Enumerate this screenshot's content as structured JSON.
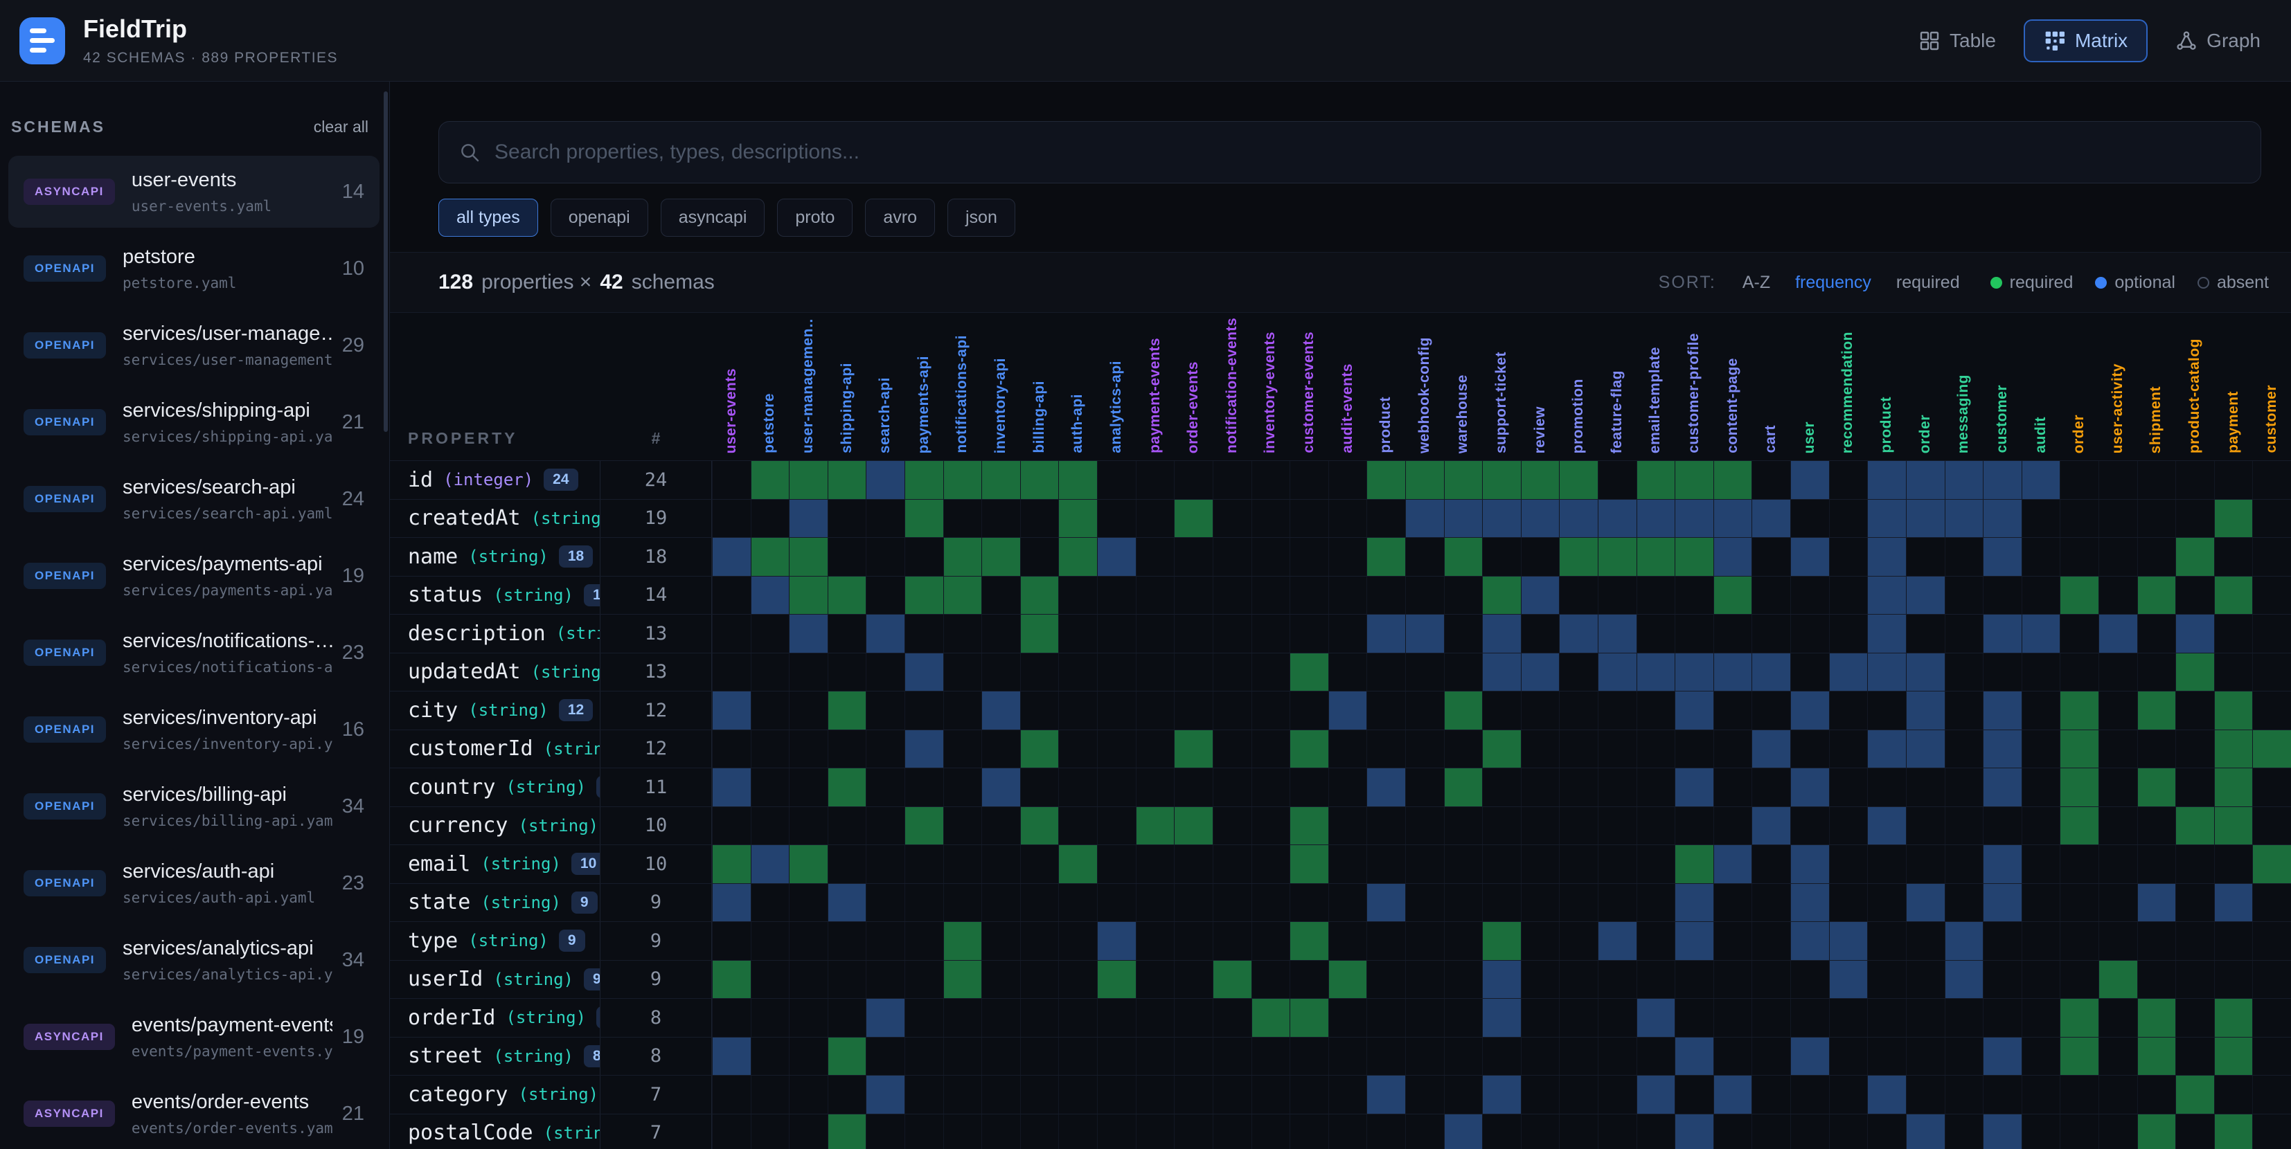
{
  "header": {
    "title": "FieldTrip",
    "subtitle": "42 SCHEMAS · 889 PROPERTIES",
    "views": [
      {
        "label": "Table",
        "icon": "table-grid-icon",
        "active": false
      },
      {
        "label": "Matrix",
        "icon": "matrix-grid-icon",
        "active": true
      },
      {
        "label": "Graph",
        "icon": "graph-nodes-icon",
        "active": false
      }
    ]
  },
  "sidebar": {
    "heading": "SCHEMAS",
    "clear_label": "clear all",
    "items": [
      {
        "badge": "ASYNCAPI",
        "name": "user-events",
        "file": "user-events.yaml",
        "count": 14,
        "selected": true
      },
      {
        "badge": "OPENAPI",
        "name": "petstore",
        "file": "petstore.yaml",
        "count": 10,
        "selected": false
      },
      {
        "badge": "OPENAPI",
        "name": "services/user-manage…",
        "file": "services/user-management…",
        "count": 29,
        "selected": false
      },
      {
        "badge": "OPENAPI",
        "name": "services/shipping-api",
        "file": "services/shipping-api.ya…",
        "count": 21,
        "selected": false
      },
      {
        "badge": "OPENAPI",
        "name": "services/search-api",
        "file": "services/search-api.yaml",
        "count": 24,
        "selected": false
      },
      {
        "badge": "OPENAPI",
        "name": "services/payments-api",
        "file": "services/payments-api.ya…",
        "count": 19,
        "selected": false
      },
      {
        "badge": "OPENAPI",
        "name": "services/notifications-…",
        "file": "services/notifications-a…",
        "count": 23,
        "selected": false
      },
      {
        "badge": "OPENAPI",
        "name": "services/inventory-api",
        "file": "services/inventory-api.y…",
        "count": 16,
        "selected": false
      },
      {
        "badge": "OPENAPI",
        "name": "services/billing-api",
        "file": "services/billing-api.yaml",
        "count": 34,
        "selected": false
      },
      {
        "badge": "OPENAPI",
        "name": "services/auth-api",
        "file": "services/auth-api.yaml",
        "count": 23,
        "selected": false
      },
      {
        "badge": "OPENAPI",
        "name": "services/analytics-api",
        "file": "services/analytics-api.y…",
        "count": 34,
        "selected": false
      },
      {
        "badge": "ASYNCAPI",
        "name": "events/payment-events",
        "file": "events/payment-events.y…",
        "count": 19,
        "selected": false
      },
      {
        "badge": "ASYNCAPI",
        "name": "events/order-events",
        "file": "events/order-events.yaml",
        "count": 21,
        "selected": false
      }
    ],
    "badge_colors": {
      "ASYNCAPI": {
        "fg": "#b591f7",
        "bg": "#251e3f"
      },
      "OPENAPI": {
        "fg": "#4f95f7",
        "bg": "#132137"
      }
    }
  },
  "search": {
    "placeholder": "Search properties, types, descriptions..."
  },
  "filters": {
    "options": [
      "all types",
      "openapi",
      "asyncapi",
      "proto",
      "avro",
      "json"
    ],
    "active_index": 0
  },
  "stats": {
    "properties_count": "128",
    "properties_label": "properties ×",
    "schemas_count": "42",
    "schemas_label": "schemas"
  },
  "sort": {
    "label": "SORT:",
    "options": [
      {
        "label": "A-Z",
        "active": false
      },
      {
        "label": "frequency",
        "active": true
      },
      {
        "label": "required",
        "active": false
      }
    ]
  },
  "legend": [
    {
      "label": "required",
      "color": "#22c55e",
      "style": "filled"
    },
    {
      "label": "optional",
      "color": "#3b82f6",
      "style": "filled"
    },
    {
      "label": "absent",
      "color": "#475062",
      "style": "hollow"
    }
  ],
  "matrix": {
    "property_header": "PROPERTY",
    "count_header": "#",
    "type_colors": {
      "openapi": "#4e8df7",
      "asyncapi": "#a855f7",
      "json": "#818cf8",
      "proto": "#34d399",
      "avro": "#f59e0b"
    },
    "prop_type_colors": {
      "integer": "#a78bfa",
      "string": "#2dd4bf"
    },
    "cell_colors": {
      "R": "#1b6e3c",
      "O": "#234270"
    },
    "columns": [
      {
        "label": "user-events",
        "type": "asyncapi"
      },
      {
        "label": "petstore",
        "type": "openapi"
      },
      {
        "label": "user-managemen…",
        "type": "openapi"
      },
      {
        "label": "shipping-api",
        "type": "openapi"
      },
      {
        "label": "search-api",
        "type": "openapi"
      },
      {
        "label": "payments-api",
        "type": "openapi"
      },
      {
        "label": "notifications-api",
        "type": "openapi"
      },
      {
        "label": "inventory-api",
        "type": "openapi"
      },
      {
        "label": "billing-api",
        "type": "openapi"
      },
      {
        "label": "auth-api",
        "type": "openapi"
      },
      {
        "label": "analytics-api",
        "type": "openapi"
      },
      {
        "label": "payment-events",
        "type": "asyncapi"
      },
      {
        "label": "order-events",
        "type": "asyncapi"
      },
      {
        "label": "notification-events",
        "type": "asyncapi"
      },
      {
        "label": "inventory-events",
        "type": "asyncapi"
      },
      {
        "label": "customer-events",
        "type": "asyncapi"
      },
      {
        "label": "audit-events",
        "type": "asyncapi"
      },
      {
        "label": "product",
        "type": "json"
      },
      {
        "label": "webhook-config",
        "type": "json"
      },
      {
        "label": "warehouse",
        "type": "json"
      },
      {
        "label": "support-ticket",
        "type": "json"
      },
      {
        "label": "review",
        "type": "json"
      },
      {
        "label": "promotion",
        "type": "json"
      },
      {
        "label": "feature-flag",
        "type": "json"
      },
      {
        "label": "email-template",
        "type": "json"
      },
      {
        "label": "customer-profile",
        "type": "json"
      },
      {
        "label": "content-page",
        "type": "json"
      },
      {
        "label": "cart",
        "type": "json"
      },
      {
        "label": "user",
        "type": "proto"
      },
      {
        "label": "recommendation",
        "type": "proto"
      },
      {
        "label": "product",
        "type": "proto"
      },
      {
        "label": "order",
        "type": "proto"
      },
      {
        "label": "messaging",
        "type": "proto"
      },
      {
        "label": "customer",
        "type": "proto"
      },
      {
        "label": "audit",
        "type": "proto"
      },
      {
        "label": "order",
        "type": "avro"
      },
      {
        "label": "user-activity",
        "type": "avro"
      },
      {
        "label": "shipment",
        "type": "avro"
      },
      {
        "label": "product-catalog",
        "type": "avro"
      },
      {
        "label": "payment",
        "type": "avro"
      },
      {
        "label": "customer",
        "type": "avro"
      }
    ],
    "rows": [
      {
        "name": "id",
        "type": "integer",
        "count": 24,
        "cells": ".RRRORRRRR.......RRRRRR.RRR.O.OOOOO......"
      },
      {
        "name": "createdAt",
        "type": "string",
        "count": 19,
        "cells": "..O..R...R..R.....OOOOOOOOOO..OOOO.....R."
      },
      {
        "name": "name",
        "type": "string",
        "count": 18,
        "cells": "ORR...RR.RO......R.R..RRRRO.O.O..O....R.."
      },
      {
        "name": "status",
        "type": "string",
        "count": 14,
        "cells": ".ORR.RR.R...........RO....R...OO...R.R.R."
      },
      {
        "name": "description",
        "type": "string",
        "count": 13,
        "cells": "..O.O...R........OO.O.OO......O..OO.O.O.."
      },
      {
        "name": "updatedAt",
        "type": "string",
        "count": 13,
        "cells": ".....O.........R....OO.OOOOO.OOO......R.."
      },
      {
        "name": "city",
        "type": "string",
        "count": 12,
        "cells": "O..R...O........O..R.....O..O..O.O.R.R.R."
      },
      {
        "name": "customerId",
        "type": "string",
        "count": 12,
        "cells": ".....O..R...R..R....R......O..OO.O.R...RR"
      },
      {
        "name": "country",
        "type": "string",
        "count": 11,
        "cells": "O..R...O.........O.R.....O..O....O.R.R.R."
      },
      {
        "name": "currency",
        "type": "string",
        "count": 10,
        "cells": ".....R..R..RR..R...........O..O....R..RR."
      },
      {
        "name": "email",
        "type": "string",
        "count": 10,
        "cells": "ROR......R.....R.........RO.O....O......R"
      },
      {
        "name": "state",
        "type": "string",
        "count": 9,
        "cells": "O..O.............O.......O..O..O.O...O.O."
      },
      {
        "name": "type",
        "type": "string",
        "count": 9,
        "cells": "......R...O....R....R..O.O..OO..O........"
      },
      {
        "name": "userId",
        "type": "string",
        "count": 9,
        "cells": "R.....R...R..R..R...O........O..O...R...."
      },
      {
        "name": "orderId",
        "type": "string",
        "count": 8,
        "cells": "....O.........RR....O...O..........R.R.R."
      },
      {
        "name": "street",
        "type": "string",
        "count": 8,
        "cells": "O..R.....................O..O....O.R.R.R."
      },
      {
        "name": "category",
        "type": "string",
        "count": 7,
        "cells": "....O............O..O...O.O...O.......R.."
      },
      {
        "name": "postalCode",
        "type": "string",
        "count": 7,
        "cells": "...R...............O.....O.....O.O...R.R."
      }
    ]
  }
}
